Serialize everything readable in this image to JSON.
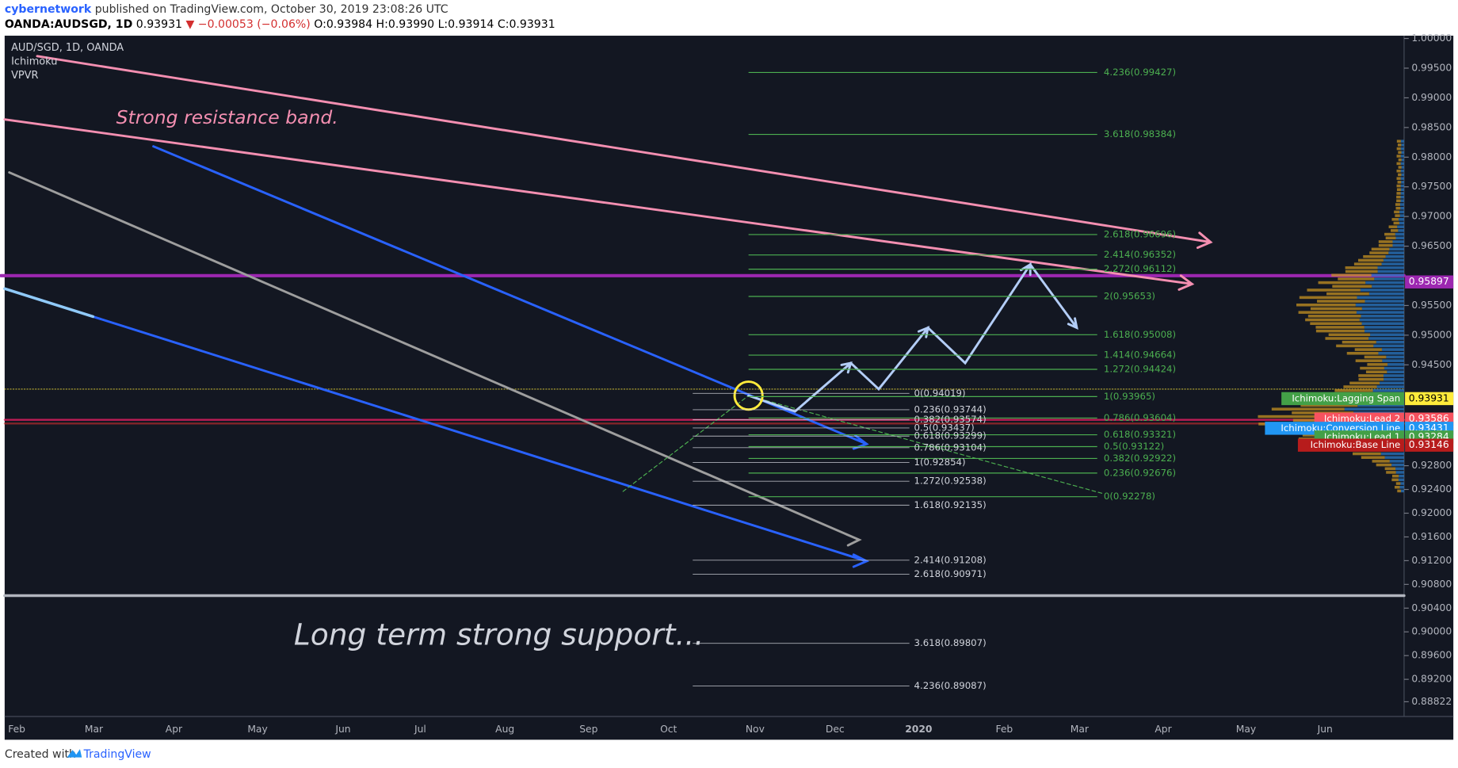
{
  "header": {
    "author": "cybernetwork",
    "published": "published on TradingView.com, October 30, 2019 23:08:26 UTC",
    "symbol": "OANDA:AUDSGD, 1D",
    "price": "0.93931",
    "change": "▼ −0.00053 (−0.06%)",
    "ohlc": [
      "O:0.93984",
      "H:0.93990",
      "L:0.93914",
      "C:0.93931"
    ]
  },
  "legend": [
    "AUD/SGD, 1D, OANDA",
    "Ichimoku",
    "VPVR"
  ],
  "annotations": [
    "Strong resistance band.",
    "Long term strong support..."
  ],
  "price_axis": {
    "ticks": [
      {
        "value": 1.0,
        "label": "1.00000"
      },
      {
        "value": 0.995,
        "label": "0.99500"
      },
      {
        "value": 0.99,
        "label": "0.99000"
      },
      {
        "value": 0.985,
        "label": "0.98500"
      },
      {
        "value": 0.98,
        "label": "0.98000"
      },
      {
        "value": 0.975,
        "label": "0.97500"
      },
      {
        "value": 0.97,
        "label": "0.97000"
      },
      {
        "value": 0.965,
        "label": "0.96500"
      },
      {
        "value": 0.955,
        "label": "0.95500"
      },
      {
        "value": 0.95,
        "label": "0.95000"
      },
      {
        "value": 0.945,
        "label": "0.94500"
      },
      {
        "value": 0.928,
        "label": "0.92800"
      },
      {
        "value": 0.924,
        "label": "0.92400"
      },
      {
        "value": 0.92,
        "label": "0.92000"
      },
      {
        "value": 0.916,
        "label": "0.91600"
      },
      {
        "value": 0.912,
        "label": "0.91200"
      },
      {
        "value": 0.908,
        "label": "0.90800"
      },
      {
        "value": 0.904,
        "label": "0.90400"
      },
      {
        "value": 0.9,
        "label": "0.90000"
      },
      {
        "value": 0.896,
        "label": "0.89600"
      },
      {
        "value": 0.892,
        "label": "0.89200"
      },
      0.88822
    ]
  },
  "time_axis": [
    "Feb",
    "Mar",
    "Apr",
    "May",
    "Jun",
    "Jul",
    "Aug",
    "Sep",
    "Oct",
    "Nov",
    "Dec",
    "2020",
    "Feb",
    "Mar",
    "Apr",
    "May",
    "Jun"
  ],
  "fib_extension": [
    "4.236(0.99427)",
    "3.618(0.98384)",
    "2.618(0.96696)",
    "2.414(0.96352)",
    "2.272(0.96112)",
    "2(0.95653)",
    "1.618(0.95008)",
    "1.414(0.94664)",
    "1.272(0.94424)",
    "1(0.93965)",
    "0.786(0.93604)",
    "0.618(0.93321)",
    "0.5(0.93122)",
    "0.382(0.92922)",
    "0.236(0.92676)",
    "0(0.92278)"
  ],
  "fib_retracement": [
    "0(0.94019)",
    "0.236(0.93744)",
    "0.382(0.93574)",
    "0.5(0.93437)",
    "0.618(0.93299)",
    "0.786(0.93104)",
    "1(0.92854)",
    "1.272(0.92538)",
    "1.618(0.92135)",
    "2.414(0.91208)",
    "2.618(0.90971)",
    "3.618(0.89807)",
    "4.236(0.89087)"
  ],
  "price_labels": [
    {
      "value": 0.95897,
      "color": "#9c27b0"
    },
    {
      "name": "Ichimoku:Lagging Span",
      "value": 0.93931,
      "color": "#ffeb3b",
      "name_color": "#43a047"
    },
    {
      "name": "Ichimoku:Lead 2",
      "value": 0.93586,
      "color": "#f7525f"
    },
    {
      "name": "Ichimoku:Conversion Line",
      "value": 0.93431,
      "color": "#2196f3"
    },
    {
      "name": "Ichimoku:Lead 1",
      "value": 0.93284,
      "color": "#43a047"
    },
    {
      "name": "Ichimoku:Base Line",
      "value": 0.93146,
      "color": "#b71c1c"
    }
  ],
  "footer": {
    "created": "Created with",
    "brand": "TradingView"
  }
}
